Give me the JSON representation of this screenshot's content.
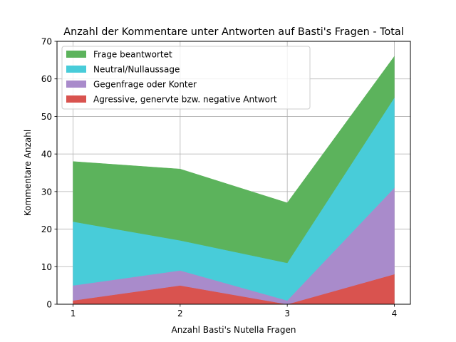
{
  "chart_data": {
    "type": "area",
    "stacked": true,
    "title": "Anzahl der Kommentare unter Antworten auf Basti's Fragen - Total",
    "xlabel": "Anzahl Basti's Nutella Fragen",
    "ylabel": "Kommentare Anzahl",
    "x": [
      1,
      2,
      3,
      4
    ],
    "x_ticks": [
      "1",
      "2",
      "3",
      "4"
    ],
    "y_ticks": [
      "0",
      "10",
      "20",
      "30",
      "40",
      "50",
      "60",
      "70"
    ],
    "xlim": [
      0.85,
      4.15
    ],
    "ylim": [
      0,
      70
    ],
    "grid": true,
    "legend_position": "top-left",
    "series": [
      {
        "name": "Agressive, genervte bzw. negative Antwort",
        "values": [
          1,
          5,
          0,
          8
        ],
        "color": "#d9534f"
      },
      {
        "name": "Gegenfrage oder Konter",
        "values": [
          4,
          4,
          1,
          23
        ],
        "color": "#a98bcb"
      },
      {
        "name": "Neutral/Nullaussage",
        "values": [
          17,
          8,
          10,
          24
        ],
        "color": "#48ccd9"
      },
      {
        "name": "Frage beantwortet",
        "values": [
          16,
          19,
          16,
          11
        ],
        "color": "#5cb35c"
      }
    ],
    "legend_order": [
      "Frage beantwortet",
      "Neutral/Nullaussage",
      "Gegenfrage oder Konter",
      "Agressive, genervte bzw. negative Antwort"
    ]
  }
}
